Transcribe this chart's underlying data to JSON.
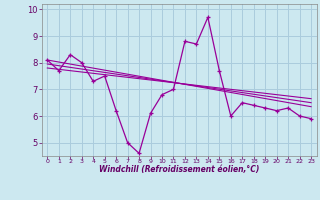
{
  "xlabel": "Windchill (Refroidissement éolien,°C)",
  "bg_color": "#cce8f0",
  "grid_color": "#aaccdd",
  "line_color": "#990099",
  "hours": [
    0,
    1,
    2,
    3,
    4,
    5,
    6,
    7,
    8,
    9,
    10,
    11,
    12,
    13,
    14,
    15,
    16,
    17,
    18,
    19,
    20,
    21,
    22,
    23
  ],
  "main_line": [
    8.1,
    7.7,
    8.3,
    8.0,
    7.3,
    7.5,
    6.2,
    5.0,
    4.6,
    6.1,
    6.8,
    7.0,
    8.8,
    8.7,
    9.7,
    7.7,
    6.0,
    6.5,
    6.4,
    6.3,
    6.2,
    6.3,
    6.0,
    5.9
  ],
  "ylim": [
    4.5,
    10.2
  ],
  "xlim": [
    -0.5,
    23.5
  ],
  "yticks": [
    5,
    6,
    7,
    8,
    9,
    10
  ],
  "xticks": [
    0,
    1,
    2,
    3,
    4,
    5,
    6,
    7,
    8,
    9,
    10,
    11,
    12,
    13,
    14,
    15,
    16,
    17,
    18,
    19,
    20,
    21,
    22,
    23
  ],
  "reg_lines": [
    {
      "x": [
        0,
        23
      ],
      "y": [
        8.1,
        6.35
      ]
    },
    {
      "x": [
        0,
        23
      ],
      "y": [
        7.95,
        6.5
      ]
    },
    {
      "x": [
        0,
        23
      ],
      "y": [
        7.8,
        6.65
      ]
    }
  ]
}
